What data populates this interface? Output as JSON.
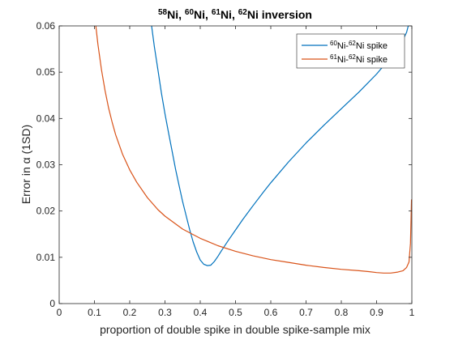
{
  "chart_data": {
    "type": "line",
    "title": "58Ni, 60Ni, 61Ni, 62Ni inversion",
    "title_parts": [
      {
        "sup": "58",
        "base": "Ni, "
      },
      {
        "sup": "60",
        "base": "Ni, "
      },
      {
        "sup": "61",
        "base": "Ni, "
      },
      {
        "sup": "62",
        "base": "Ni inversion"
      }
    ],
    "xlabel": "proportion of double spike in double spike-sample mix",
    "ylabel": "Error in α (1SD)",
    "xlim": [
      0,
      1
    ],
    "ylim": [
      0,
      0.06
    ],
    "xticks": [
      "0",
      "0.1",
      "0.2",
      "0.3",
      "0.4",
      "0.5",
      "0.6",
      "0.7",
      "0.8",
      "0.9",
      "1"
    ],
    "yticks": [
      "0",
      "0.01",
      "0.02",
      "0.03",
      "0.04",
      "0.05",
      "0.06"
    ],
    "grid": false,
    "legend_position": "top-right",
    "series": [
      {
        "name": "60Ni-62Ni spike",
        "legend_parts": [
          {
            "sup": "60",
            "base": "Ni-"
          },
          {
            "sup": "62",
            "base": "Ni spike"
          }
        ],
        "color": "#0072BD",
        "x": [
          0.262,
          0.27,
          0.28,
          0.29,
          0.3,
          0.31,
          0.32,
          0.33,
          0.34,
          0.35,
          0.36,
          0.37,
          0.38,
          0.39,
          0.4,
          0.41,
          0.42,
          0.43,
          0.44,
          0.45,
          0.46,
          0.48,
          0.5,
          0.52,
          0.55,
          0.58,
          0.6,
          0.65,
          0.7,
          0.75,
          0.8,
          0.85,
          0.9,
          0.94,
          0.96,
          0.975,
          0.985,
          0.99
        ],
        "y": [
          0.06,
          0.0555,
          0.0505,
          0.0455,
          0.041,
          0.037,
          0.033,
          0.029,
          0.0255,
          0.022,
          0.019,
          0.016,
          0.0133,
          0.0111,
          0.0094,
          0.0085,
          0.0082,
          0.0083,
          0.0091,
          0.0102,
          0.0114,
          0.0137,
          0.0159,
          0.0181,
          0.0212,
          0.0242,
          0.0261,
          0.0306,
          0.0347,
          0.0385,
          0.0421,
          0.0457,
          0.0496,
          0.0532,
          0.0553,
          0.057,
          0.0586,
          0.06
        ]
      },
      {
        "name": "61Ni-62Ni spike",
        "legend_parts": [
          {
            "sup": "61",
            "base": "Ni-"
          },
          {
            "sup": "62",
            "base": "Ni spike"
          }
        ],
        "color": "#D95319",
        "x": [
          0.104,
          0.11,
          0.12,
          0.13,
          0.14,
          0.15,
          0.16,
          0.18,
          0.2,
          0.22,
          0.25,
          0.28,
          0.3,
          0.35,
          0.4,
          0.45,
          0.5,
          0.55,
          0.6,
          0.65,
          0.7,
          0.75,
          0.8,
          0.85,
          0.88,
          0.9,
          0.92,
          0.94,
          0.96,
          0.975,
          0.985,
          0.992,
          0.996,
          0.999
        ],
        "y": [
          0.06,
          0.056,
          0.0505,
          0.046,
          0.0423,
          0.0392,
          0.0365,
          0.0322,
          0.0289,
          0.0262,
          0.0229,
          0.0203,
          0.0189,
          0.0161,
          0.0141,
          0.0125,
          0.0113,
          0.0103,
          0.0095,
          0.0089,
          0.0083,
          0.0078,
          0.0074,
          0.0071,
          0.0069,
          0.0067,
          0.0066,
          0.0066,
          0.0068,
          0.0071,
          0.0078,
          0.009,
          0.013,
          0.0225
        ]
      }
    ]
  }
}
